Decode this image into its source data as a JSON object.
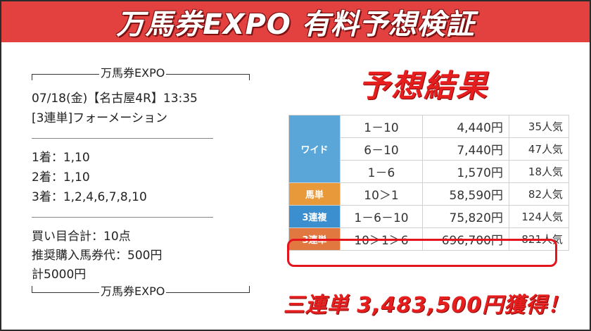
{
  "banner": {
    "title": "万馬券EXPO 有料予想検証"
  },
  "ticket": {
    "header_label": "万馬券EXPO",
    "footer_label": "万馬券EXPO",
    "race_line": "07/18(金)【名古屋4R】13:35",
    "bet_type_line": "[3連単]フォーメーション",
    "picks": [
      "1着：1,10",
      "2着：1,10",
      "3着：1,2,4,6,7,8,10"
    ],
    "total_line": "買い目合計：10点",
    "stake_line": "推奨購入馬券代：500円",
    "sum_line": "計5000円"
  },
  "result": {
    "title": "予想結果",
    "wide_label": "ワイド",
    "wide_rows": [
      {
        "combo": "1－10",
        "payout": "4,440円",
        "popularity": "35人気"
      },
      {
        "combo": "6－10",
        "payout": "7,440円",
        "popularity": "47人気"
      },
      {
        "combo": "1－6",
        "payout": "1,570円",
        "popularity": "18人気"
      }
    ],
    "rows": [
      {
        "type": "馬単",
        "combo": "10＞1",
        "payout": "58,590円",
        "popularity": "82人気"
      },
      {
        "type": "3連複",
        "combo": "1－6－10",
        "payout": "75,820円",
        "popularity": "124人気"
      },
      {
        "type": "3連単",
        "combo": "10＞1＞6",
        "payout": "696,700円",
        "popularity": "821人気"
      }
    ],
    "colors": {
      "wide": "#5aa6d8",
      "umatan": "#e89a3a",
      "sanrenpuku": "#3b8fcf",
      "sanrentan": "#e07840"
    }
  },
  "gain_text": "三連単 3,483,500円獲得！"
}
